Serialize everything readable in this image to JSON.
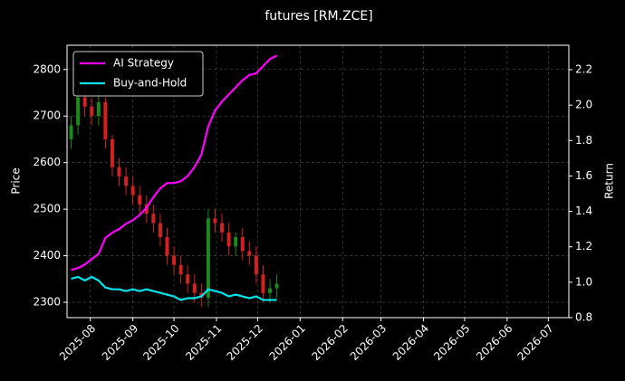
{
  "chart_data": {
    "type": "candlestick",
    "title": "futures [RM.ZCE]",
    "ylabel": "Price",
    "y2label": "Return",
    "x": [
      3,
      8,
      13,
      18,
      23,
      28,
      33,
      38,
      43,
      48,
      53,
      58,
      63,
      68,
      73,
      78,
      83,
      88,
      93,
      98,
      103,
      108,
      113,
      118,
      123,
      128,
      133,
      138,
      143,
      148,
      153
    ],
    "open": [
      2650,
      2680,
      2740,
      2720,
      2700,
      2730,
      2650,
      2590,
      2570,
      2550,
      2530,
      2510,
      2490,
      2470,
      2440,
      2400,
      2380,
      2360,
      2340,
      2320,
      2310,
      2480,
      2470,
      2450,
      2420,
      2440,
      2410,
      2400,
      2360,
      2320,
      2330
    ],
    "high": [
      2700,
      2760,
      2760,
      2740,
      2760,
      2740,
      2660,
      2610,
      2590,
      2570,
      2550,
      2530,
      2510,
      2490,
      2460,
      2420,
      2400,
      2380,
      2360,
      2340,
      2500,
      2500,
      2490,
      2470,
      2450,
      2460,
      2430,
      2420,
      2380,
      2350,
      2360
    ],
    "low": [
      2630,
      2660,
      2700,
      2680,
      2680,
      2630,
      2570,
      2550,
      2530,
      2510,
      2490,
      2470,
      2450,
      2420,
      2380,
      2360,
      2340,
      2320,
      2300,
      2290,
      2290,
      2450,
      2430,
      2400,
      2400,
      2390,
      2380,
      2340,
      2300,
      2300,
      2310
    ],
    "close": [
      2680,
      2740,
      2720,
      2700,
      2730,
      2650,
      2590,
      2570,
      2550,
      2530,
      2510,
      2490,
      2470,
      2440,
      2400,
      2380,
      2360,
      2340,
      2320,
      2310,
      2480,
      2470,
      2450,
      2420,
      2440,
      2410,
      2400,
      2360,
      2320,
      2330,
      2340
    ],
    "up_color": "#1a8a1a",
    "down_color": "#d42020",
    "series": [
      {
        "name": "AI Strategy",
        "color": "#ff00ff",
        "axis": "y2",
        "values": [
          1.07,
          1.08,
          1.1,
          1.13,
          1.16,
          1.25,
          1.28,
          1.3,
          1.33,
          1.35,
          1.38,
          1.42,
          1.48,
          1.53,
          1.56,
          1.56,
          1.57,
          1.6,
          1.65,
          1.72,
          1.88,
          1.97,
          2.02,
          2.06,
          2.1,
          2.14,
          2.17,
          2.18,
          2.22,
          2.26,
          2.28
        ]
      },
      {
        "name": "Buy-and-Hold",
        "color": "#00e5ee",
        "axis": "y2",
        "values": [
          1.02,
          1.03,
          1.01,
          1.03,
          1.01,
          0.97,
          0.96,
          0.96,
          0.95,
          0.96,
          0.95,
          0.96,
          0.95,
          0.94,
          0.93,
          0.92,
          0.9,
          0.91,
          0.91,
          0.92,
          0.96,
          0.95,
          0.94,
          0.92,
          0.93,
          0.92,
          0.91,
          0.92,
          0.9,
          0.9,
          0.9
        ]
      }
    ],
    "xlim": [
      0,
      366
    ],
    "xticks": [
      {
        "value": 17,
        "label": "2025-08"
      },
      {
        "value": 48,
        "label": "2025-09"
      },
      {
        "value": 78,
        "label": "2025-10"
      },
      {
        "value": 109,
        "label": "2025-11"
      },
      {
        "value": 139,
        "label": "2025-12"
      },
      {
        "value": 170,
        "label": "2026-01"
      },
      {
        "value": 201,
        "label": "2026-02"
      },
      {
        "value": 229,
        "label": "2026-03"
      },
      {
        "value": 260,
        "label": "2026-04"
      },
      {
        "value": 290,
        "label": "2026-05"
      },
      {
        "value": 321,
        "label": "2026-06"
      },
      {
        "value": 351,
        "label": "2026-07"
      }
    ],
    "ylim": [
      2267,
      2852
    ],
    "yticks": [
      2300,
      2400,
      2500,
      2600,
      2700,
      2800
    ],
    "y2lim": [
      0.8,
      2.338
    ],
    "y2ticks": [
      0.8,
      {
        "value": 1.0,
        "label": "1.0"
      },
      1.2,
      1.4,
      1.6,
      1.8,
      {
        "value": 2.0,
        "label": "2.0"
      },
      2.2
    ],
    "grid": true,
    "legend": "upper left"
  }
}
